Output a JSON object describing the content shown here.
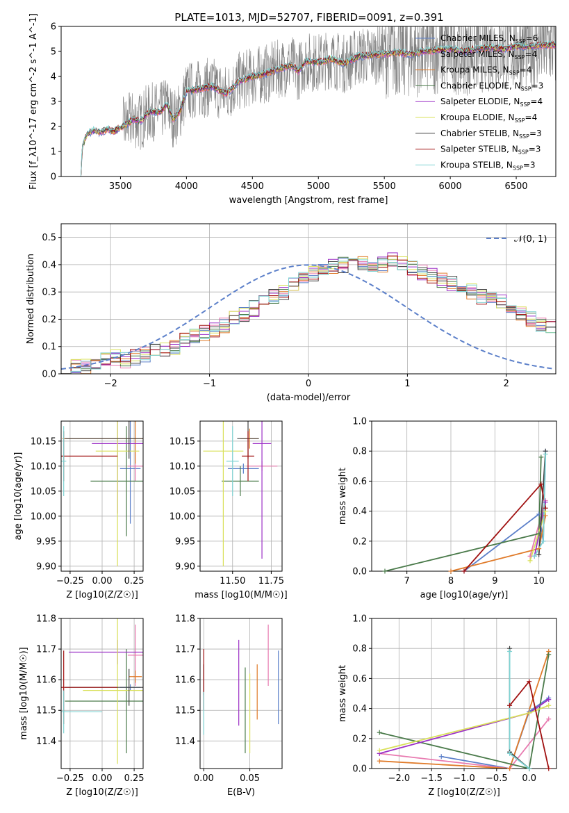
{
  "title": "PLATE=1013, MJD=52707, FIBERID=0091, z=0.391",
  "colors": {
    "chabrier_miles": "#5b7fc9",
    "salpeter_miles": "#e87ab0",
    "kroupa_miles": "#e07b2a",
    "chabrier_elodie": "#4a7a4a",
    "salpeter_elodie": "#9b2fc6",
    "kroupa_elodie": "#d9e05a",
    "chabrier_stelib": "#404040",
    "salpeter_stelib": "#a01010",
    "kroupa_stelib": "#7ed3d3",
    "data": "#808080",
    "grid": "#b0b0b0"
  },
  "legend": {
    "entries": [
      {
        "label": "Chabrier MILES, N",
        "sub": "SSP",
        "tail": "=6"
      },
      {
        "label": "Salpeter MILES, N",
        "sub": "SSP",
        "tail": "=4"
      },
      {
        "label": "Kroupa MILES, N",
        "sub": "SSP",
        "tail": "=4"
      },
      {
        "label": "Chabrier ELODIE, N",
        "sub": "SSP",
        "tail": "=3"
      },
      {
        "label": "Salpeter ELODIE, N",
        "sub": "SSP",
        "tail": "=4"
      },
      {
        "label": "Kroupa ELODIE, N",
        "sub": "SSP",
        "tail": "=4"
      },
      {
        "label": "Chabrier STELIB, N",
        "sub": "SSP",
        "tail": "=3"
      },
      {
        "label": "Salpeter STELIB, N",
        "sub": "SSP",
        "tail": "=3"
      },
      {
        "label": "Kroupa STELIB, N",
        "sub": "SSP",
        "tail": "=3"
      }
    ],
    "gaussian_label": "𝒩(0, 1)"
  },
  "chart_data": [
    {
      "type": "line",
      "name": "spectrum",
      "xlabel": "wavelength [Angstrom, rest frame]",
      "ylabel": "Flux [f_λ10^-17 erg cm^-2 s^-1 A^-1]",
      "xlim": [
        3050,
        6800
      ],
      "ylim": [
        0,
        6
      ],
      "xticks": [
        3500,
        4000,
        4500,
        5000,
        5500,
        6000,
        6500
      ],
      "yticks": [
        0,
        1,
        2,
        3,
        4,
        5,
        6
      ],
      "grid": false,
      "legend_position": "right",
      "model_continuum": [
        [
          3200,
          0.0
        ],
        [
          3210,
          1.2
        ],
        [
          3250,
          1.7
        ],
        [
          3300,
          1.85
        ],
        [
          3350,
          1.75
        ],
        [
          3400,
          1.9
        ],
        [
          3450,
          1.8
        ],
        [
          3500,
          1.95
        ],
        [
          3550,
          2.1
        ],
        [
          3600,
          2.3
        ],
        [
          3650,
          2.2
        ],
        [
          3700,
          2.5
        ],
        [
          3750,
          2.6
        ],
        [
          3800,
          2.55
        ],
        [
          3850,
          2.9
        ],
        [
          3900,
          2.3
        ],
        [
          3950,
          2.6
        ],
        [
          4000,
          3.4
        ],
        [
          4100,
          3.5
        ],
        [
          4200,
          3.6
        ],
        [
          4300,
          3.3
        ],
        [
          4400,
          3.8
        ],
        [
          4500,
          4.0
        ],
        [
          4600,
          4.1
        ],
        [
          4700,
          4.3
        ],
        [
          4800,
          4.45
        ],
        [
          4850,
          4.2
        ],
        [
          4900,
          4.6
        ],
        [
          5000,
          4.55
        ],
        [
          5100,
          4.7
        ],
        [
          5200,
          4.5
        ],
        [
          5300,
          4.8
        ],
        [
          5400,
          4.85
        ],
        [
          5500,
          4.9
        ],
        [
          5600,
          4.95
        ],
        [
          5700,
          4.9
        ],
        [
          5800,
          5.0
        ],
        [
          5900,
          5.05
        ],
        [
          6000,
          5.1
        ],
        [
          6100,
          5.0
        ],
        [
          6200,
          5.1
        ],
        [
          6300,
          5.15
        ],
        [
          6400,
          5.1
        ],
        [
          6500,
          5.2
        ],
        [
          6600,
          5.2
        ],
        [
          6700,
          5.25
        ]
      ],
      "observed_noise_start": 3520
    },
    {
      "type": "histogram",
      "name": "residuals",
      "xlabel": "(data-model)/error",
      "ylabel": "Normed distribution",
      "xlim": [
        -2.5,
        2.5
      ],
      "ylim": [
        0,
        0.55
      ],
      "xticks": [
        -2,
        -1,
        0,
        1,
        2
      ],
      "yticks": [
        0.0,
        0.1,
        0.2,
        0.3,
        0.4,
        0.5
      ],
      "grid": true,
      "legend_position": "top-right",
      "bin_edges_start": -2.5,
      "bin_width": 0.1,
      "base_counts": [
        0.03,
        0.03,
        0.03,
        0.04,
        0.05,
        0.06,
        0.05,
        0.06,
        0.07,
        0.08,
        0.09,
        0.1,
        0.12,
        0.14,
        0.15,
        0.16,
        0.18,
        0.2,
        0.22,
        0.24,
        0.26,
        0.28,
        0.3,
        0.33,
        0.35,
        0.37,
        0.38,
        0.39,
        0.4,
        0.4,
        0.41,
        0.4,
        0.4,
        0.42,
        0.41,
        0.39,
        0.37,
        0.36,
        0.34,
        0.33,
        0.31,
        0.3,
        0.28,
        0.27,
        0.26,
        0.24,
        0.22,
        0.2,
        0.18,
        0.17,
        0.15,
        0.14,
        0.12,
        0.1,
        0.09,
        0.08,
        0.07,
        0.06,
        0.05,
        0.05,
        0.04,
        0.04,
        0.03,
        0.02,
        0.02
      ],
      "gaussian": {
        "mean": 0,
        "sigma": 1
      }
    },
    {
      "type": "scatter",
      "name": "age-vs-Z",
      "xlabel": "Z [log10(Z/Z☉)]",
      "ylabel": "age [log10(age/yr)]",
      "xlim": [
        -0.32,
        0.32
      ],
      "ylim": [
        9.89,
        10.19
      ],
      "xticks": [
        -0.25,
        0.0,
        0.25
      ],
      "yticks": [
        9.9,
        9.95,
        10.0,
        10.05,
        10.1,
        10.15
      ],
      "grid": true,
      "points": [
        {
          "c": "chabrier_miles",
          "x": 0.22,
          "xe": 0.08,
          "y": 10.095,
          "ye": 0.11
        },
        {
          "c": "salpeter_miles",
          "x": 0.26,
          "xe": 0.06,
          "y": 10.1,
          "ye": 0.03
        },
        {
          "c": "kroupa_miles",
          "x": 0.26,
          "xe": 0.57,
          "y": 10.155,
          "ye": 0.05
        },
        {
          "c": "chabrier_elodie",
          "x": 0.19,
          "xe": 0.28,
          "y": 10.07,
          "ye": 0.11
        },
        {
          "c": "salpeter_elodie",
          "x": 0.12,
          "xe": 0.2,
          "y": 10.145,
          "ye": 0.14
        },
        {
          "c": "kroupa_elodie",
          "x": 0.12,
          "xe": 0.17,
          "y": 10.13,
          "ye": 0.23
        },
        {
          "c": "chabrier_stelib",
          "x": 0.21,
          "xe": 0.5,
          "y": 10.155,
          "ye": 0.04
        },
        {
          "c": "salpeter_stelib",
          "x": -0.3,
          "xe": 0.42,
          "y": 10.12,
          "ye": 0.05
        },
        {
          "c": "kroupa_stelib",
          "x": -0.3,
          "xe": 0.02,
          "y": 10.11,
          "ye": 0.07
        }
      ]
    },
    {
      "type": "scatter",
      "name": "age-vs-mass",
      "xlabel": "mass [log10(M/M☉)]",
      "ylabel": "",
      "xlim": [
        11.29,
        11.82
      ],
      "ylim": [
        9.89,
        10.19
      ],
      "xticks": [
        11.5,
        11.75
      ],
      "xticklabels": [
        "11.50",
        "11.75"
      ],
      "yticks": [
        9.9,
        9.95,
        10.0,
        10.05,
        10.1,
        10.15
      ],
      "grid": true,
      "points": [
        {
          "c": "chabrier_miles",
          "x": 11.57,
          "xe": 0.1,
          "y": 10.095,
          "ye": 0.01
        },
        {
          "c": "salpeter_miles",
          "x": 11.69,
          "xe": 0.1,
          "y": 10.1,
          "ye": 0.01
        },
        {
          "c": "kroupa_miles",
          "x": 11.61,
          "xe": 0.06,
          "y": 10.155,
          "ye": 0.02
        },
        {
          "c": "chabrier_elodie",
          "x": 11.55,
          "xe": 0.12,
          "y": 10.07,
          "ye": 0.03
        },
        {
          "c": "salpeter_elodie",
          "x": 11.69,
          "xe": 0.06,
          "y": 10.145,
          "ye": 0.23
        },
        {
          "c": "kroupa_elodie",
          "x": 11.44,
          "xe": 0.13,
          "y": 10.13,
          "ye": 0.23
        },
        {
          "c": "chabrier_stelib",
          "x": 11.6,
          "xe": 0.07,
          "y": 10.155,
          "ye": 0.04
        },
        {
          "c": "salpeter_stelib",
          "x": 11.6,
          "xe": 0.04,
          "y": 10.12,
          "ye": 0.05
        },
        {
          "c": "kroupa_stelib",
          "x": 11.5,
          "xe": 0.04,
          "y": 10.11,
          "ye": 0.07
        }
      ]
    },
    {
      "type": "line",
      "name": "weight-vs-age",
      "xlabel": "age [log10(age/yr)]",
      "ylabel": "mass weight",
      "xlim": [
        6.2,
        10.4
      ],
      "ylim": [
        0,
        1
      ],
      "xticks": [
        7,
        8,
        9,
        10
      ],
      "yticks": [
        0.0,
        0.2,
        0.4,
        0.6,
        0.8,
        1.0
      ],
      "grid": true,
      "series": [
        {
          "c": "chabrier_miles",
          "pts": [
            [
              8.3,
              0.0
            ],
            [
              10.0,
              0.38
            ],
            [
              10.1,
              0.2
            ],
            [
              10.15,
              0.8
            ]
          ]
        },
        {
          "c": "salpeter_miles",
          "pts": [
            [
              9.8,
              0.1
            ],
            [
              10.15,
              0.47
            ]
          ]
        },
        {
          "c": "kroupa_miles",
          "pts": [
            [
              8.0,
              0.0
            ],
            [
              10.0,
              0.15
            ],
            [
              10.15,
              0.37
            ]
          ]
        },
        {
          "c": "chabrier_elodie",
          "pts": [
            [
              6.5,
              0.0
            ],
            [
              10.0,
              0.25
            ],
            [
              10.05,
              0.76
            ]
          ]
        },
        {
          "c": "salpeter_elodie",
          "pts": [
            [
              9.9,
              0.1
            ],
            [
              10.15,
              0.46
            ]
          ]
        },
        {
          "c": "kroupa_elodie",
          "pts": [
            [
              9.8,
              0.07
            ],
            [
              10.15,
              0.4
            ]
          ]
        },
        {
          "c": "chabrier_stelib",
          "pts": [
            [
              10.0,
              0.11
            ],
            [
              10.15,
              0.8
            ]
          ]
        },
        {
          "c": "salpeter_stelib",
          "pts": [
            [
              8.3,
              0.0
            ],
            [
              10.05,
              0.58
            ],
            [
              10.15,
              0.42
            ]
          ]
        },
        {
          "c": "kroupa_stelib",
          "pts": [
            [
              9.9,
              0.1
            ],
            [
              10.1,
              0.2
            ],
            [
              10.15,
              0.78
            ]
          ]
        }
      ]
    },
    {
      "type": "scatter",
      "name": "mass-vs-Z",
      "xlabel": "Z [log10(Z/Z☉)]",
      "ylabel": "mass [log10(M/M☉)]",
      "xlim": [
        -0.32,
        0.32
      ],
      "ylim": [
        11.31,
        11.8
      ],
      "xticks": [
        -0.25,
        0.0,
        0.25
      ],
      "yticks": [
        11.4,
        11.5,
        11.6,
        11.7,
        11.8
      ],
      "grid": true,
      "points": [
        {
          "c": "chabrier_miles",
          "x": 0.22,
          "xe": 0.08,
          "y": 11.575,
          "ye": 0.01
        },
        {
          "c": "salpeter_miles",
          "x": 0.26,
          "xe": 0.06,
          "y": 11.68,
          "ye": 0.1
        },
        {
          "c": "kroupa_miles",
          "x": 0.26,
          "xe": 0.05,
          "y": 11.61,
          "ye": 0.02
        },
        {
          "c": "chabrier_elodie",
          "x": 0.19,
          "xe": 0.48,
          "y": 11.53,
          "ye": 0.17
        },
        {
          "c": "salpeter_elodie",
          "x": 0.12,
          "xe": 0.38,
          "y": 11.69,
          "ye": 0.04
        },
        {
          "c": "kroupa_elodie",
          "x": 0.12,
          "xe": 0.27,
          "y": 11.565,
          "ye": 0.24
        },
        {
          "c": "chabrier_stelib",
          "x": 0.21,
          "xe": 0.5,
          "y": 11.575,
          "ye": 0.06
        },
        {
          "c": "salpeter_stelib",
          "x": -0.3,
          "xe": 0.42,
          "y": 11.575,
          "ye": 0.12
        },
        {
          "c": "kroupa_stelib",
          "x": -0.3,
          "xe": 0.3,
          "y": 11.495,
          "ye": 0.07
        }
      ]
    },
    {
      "type": "scatter",
      "name": "mass-vs-EBV",
      "xlabel": "E(B-V)",
      "ylabel": "",
      "xlim": [
        -0.004,
        0.085
      ],
      "ylim": [
        11.31,
        11.8
      ],
      "xticks": [
        0.0,
        0.05
      ],
      "xticklabels": [
        "0.00",
        "0.05"
      ],
      "yticks": [
        11.4,
        11.5,
        11.6,
        11.7,
        11.8
      ],
      "grid": true,
      "points": [
        {
          "c": "chabrier_miles",
          "x": 0.081,
          "y": 11.575,
          "ye": 0.12
        },
        {
          "c": "salpeter_miles",
          "x": 0.07,
          "y": 11.68,
          "ye": 0.1
        },
        {
          "c": "kroupa_miles",
          "x": 0.058,
          "y": 11.56,
          "ye": 0.09
        },
        {
          "c": "chabrier_elodie",
          "x": 0.045,
          "y": 11.5,
          "ye": 0.14
        },
        {
          "c": "salpeter_elodie",
          "x": 0.038,
          "y": 11.59,
          "ye": 0.14
        },
        {
          "c": "kroupa_elodie",
          "x": 0.05,
          "y": 11.49,
          "ye": 0.13
        },
        {
          "c": "chabrier_stelib",
          "x": 0.0,
          "y": 11.6,
          "ye": 0.05
        },
        {
          "c": "salpeter_stelib",
          "x": 0.0,
          "y": 11.6,
          "ye": 0.1
        },
        {
          "c": "kroupa_stelib",
          "x": 0.0,
          "y": 11.49,
          "ye": 0.07
        }
      ]
    },
    {
      "type": "line",
      "name": "weight-vs-Z",
      "xlabel": "Z [log10(Z/Z☉)]",
      "ylabel": "mass weight",
      "xlim": [
        -2.42,
        0.42
      ],
      "ylim": [
        0,
        1
      ],
      "xticks": [
        -2.0,
        -1.5,
        -1.0,
        -0.5,
        0.0
      ],
      "yticks": [
        0.0,
        0.2,
        0.4,
        0.6,
        0.8,
        1.0
      ],
      "grid": true,
      "series": [
        {
          "c": "chabrier_miles",
          "pts": [
            [
              -1.35,
              0.08
            ],
            [
              -0.3,
              0.0
            ],
            [
              0.0,
              0.38
            ],
            [
              0.3,
              0.47
            ]
          ]
        },
        {
          "c": "salpeter_miles",
          "pts": [
            [
              -2.3,
              0.1
            ],
            [
              -0.3,
              0.0
            ],
            [
              0.3,
              0.33
            ]
          ]
        },
        {
          "c": "kroupa_miles",
          "pts": [
            [
              -2.3,
              0.05
            ],
            [
              -0.3,
              0.0
            ],
            [
              0.3,
              0.78
            ]
          ]
        },
        {
          "c": "chabrier_elodie",
          "pts": [
            [
              -2.3,
              0.24
            ],
            [
              0.0,
              0.0
            ],
            [
              0.3,
              0.76
            ]
          ]
        },
        {
          "c": "salpeter_elodie",
          "pts": [
            [
              -2.3,
              0.1
            ],
            [
              0.0,
              0.37
            ],
            [
              0.3,
              0.46
            ]
          ]
        },
        {
          "c": "kroupa_elodie",
          "pts": [
            [
              -2.3,
              0.12
            ],
            [
              0.0,
              0.37
            ],
            [
              0.3,
              0.42
            ]
          ]
        },
        {
          "c": "chabrier_stelib",
          "pts": [
            [
              -0.3,
              0.8
            ],
            [
              -0.3,
              0.11
            ],
            [
              0.0,
              0.0
            ]
          ]
        },
        {
          "c": "salpeter_stelib",
          "pts": [
            [
              -0.3,
              0.42
            ],
            [
              0.0,
              0.58
            ],
            [
              0.3,
              0.0
            ]
          ]
        },
        {
          "c": "kroupa_stelib",
          "pts": [
            [
              -0.3,
              0.78
            ],
            [
              -0.3,
              0.1
            ],
            [
              0.0,
              0.0
            ]
          ]
        }
      ]
    }
  ]
}
